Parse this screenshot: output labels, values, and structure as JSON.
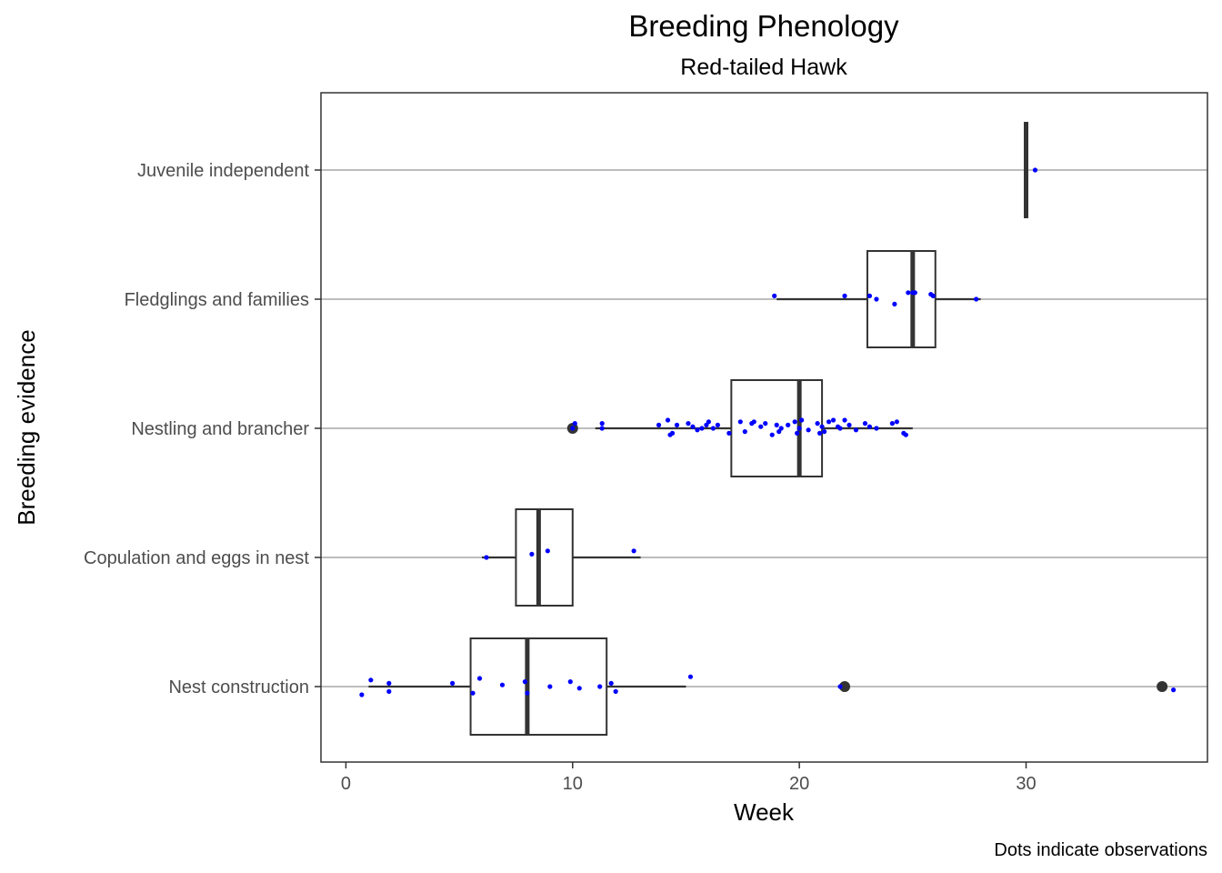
{
  "chart_data": {
    "type": "boxplot",
    "orientation": "horizontal",
    "title": "Breeding Phenology",
    "subtitle": "Red-tailed Hawk",
    "xlabel": "Week",
    "ylabel": "Breeding evidence",
    "caption": "Dots indicate observations",
    "xlim": [
      -1.1,
      38.0
    ],
    "x_ticks": [
      0,
      10,
      20,
      30
    ],
    "grid": "major y gridlines, faint x gridlines",
    "colors": {
      "box_outline": "#333333",
      "observation_dots": "#0000ff",
      "gridline": "#bdbdbd",
      "panel_border": "#333333"
    },
    "categories": [
      "Nest construction",
      "Copulation and eggs in nest",
      "Nestling and brancher",
      "Fledglings and families",
      "Juvenile independent"
    ],
    "boxes": [
      {
        "category": "Nest construction",
        "whisker_low": 1,
        "q1": 5.5,
        "median": 8,
        "q3": 11.5,
        "whisker_high": 15,
        "outliers": [
          22,
          36
        ]
      },
      {
        "category": "Copulation and eggs in nest",
        "whisker_low": 6,
        "q1": 7.5,
        "median": 8.5,
        "q3": 10,
        "whisker_high": 13,
        "outliers": []
      },
      {
        "category": "Nestling and brancher",
        "whisker_low": 11,
        "q1": 17,
        "median": 20,
        "q3": 21,
        "whisker_high": 25,
        "outliers": [
          10
        ]
      },
      {
        "category": "Fledglings and families",
        "whisker_low": 19,
        "q1": 23,
        "median": 25,
        "q3": 26,
        "whisker_high": 28,
        "outliers": []
      },
      {
        "category": "Juvenile independent",
        "whisker_low": 30,
        "q1": 30,
        "median": 30,
        "q3": 30,
        "whisker_high": 30,
        "outliers": []
      }
    ],
    "observations": [
      {
        "category": "Nest construction",
        "x": [
          0.7,
          1.1,
          1.9,
          1.9,
          4.7,
          5.6,
          5.9,
          6.9,
          7.9,
          8.0,
          9.0,
          9.9,
          10.3,
          11.2,
          11.7,
          11.9,
          15.2,
          21.8,
          36.5
        ],
        "y_jitter": [
          -0.05,
          0.04,
          0.02,
          -0.03,
          0.02,
          -0.04,
          0.05,
          0.01,
          0.03,
          -0.04,
          0.0,
          0.03,
          -0.01,
          0.0,
          0.02,
          -0.03,
          0.06,
          0.0,
          -0.02
        ]
      },
      {
        "category": "Copulation and eggs in nest",
        "x": [
          6.2,
          8.2,
          8.9,
          12.7
        ],
        "y_jitter": [
          0.0,
          0.02,
          0.04,
          0.04
        ]
      },
      {
        "category": "Nestling and brancher",
        "x": [
          10.0,
          10.1,
          11.3,
          11.3,
          13.8,
          14.2,
          14.3,
          14.4,
          14.6,
          15.1,
          15.3,
          15.5,
          15.7,
          15.9,
          16.0,
          16.2,
          16.4,
          16.9,
          17.4,
          17.6,
          17.9,
          18.0,
          18.3,
          18.5,
          18.8,
          19.0,
          19.1,
          19.2,
          19.5,
          19.8,
          19.9,
          20.0,
          20.1,
          20.4,
          20.8,
          20.9,
          21.0,
          21.1,
          21.3,
          21.5,
          21.7,
          21.8,
          22.0,
          22.2,
          22.5,
          22.9,
          23.1,
          23.4,
          24.1,
          24.3,
          24.6,
          24.7
        ],
        "y_jitter": [
          0.0,
          0.03,
          0.03,
          0.0,
          0.02,
          0.05,
          -0.04,
          -0.03,
          0.02,
          0.03,
          0.01,
          -0.01,
          0.0,
          0.02,
          0.04,
          0.0,
          0.02,
          -0.03,
          0.04,
          -0.02,
          0.03,
          0.04,
          0.01,
          0.03,
          -0.04,
          0.02,
          -0.02,
          0.0,
          0.02,
          0.04,
          -0.03,
          0.0,
          0.05,
          -0.01,
          0.03,
          -0.03,
          0.01,
          -0.02,
          0.04,
          0.05,
          0.01,
          0.0,
          0.05,
          0.02,
          -0.01,
          0.03,
          0.01,
          0.0,
          0.03,
          0.04,
          -0.03,
          -0.04
        ]
      },
      {
        "category": "Fledglings and families",
        "x": [
          18.9,
          22.0,
          23.1,
          23.4,
          24.2,
          24.8,
          25.0,
          25.1,
          25.8,
          25.9,
          27.8
        ],
        "y_jitter": [
          0.02,
          0.02,
          0.02,
          0.0,
          -0.03,
          0.04,
          0.04,
          0.04,
          0.03,
          0.02,
          0.0
        ]
      },
      {
        "category": "Juvenile independent",
        "x": [
          30.4
        ],
        "y_jitter": [
          0.0
        ]
      }
    ]
  }
}
